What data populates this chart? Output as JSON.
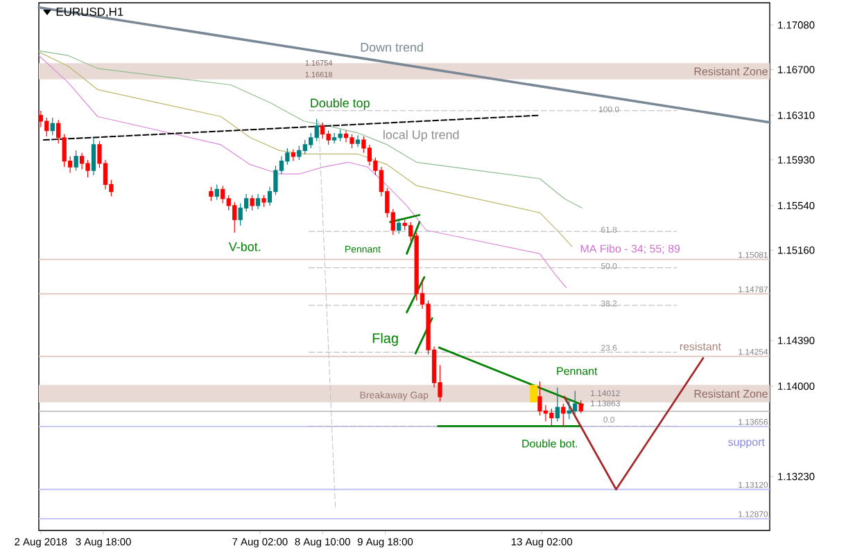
{
  "chart_data": {
    "type": "candlestick",
    "title": "EURUSD,H1",
    "x": [
      "2018-08-02T10:00",
      "2018-08-02T13:00",
      "2018-08-02T16:00",
      "2018-08-02T19:00",
      "2018-08-02T22:00",
      "2018-08-03T01:00",
      "2018-08-03T04:00",
      "2018-08-03T07:00",
      "2018-08-03T10:00",
      "2018-08-03T13:00",
      "2018-08-03T16:00",
      "2018-08-03T19:00",
      "2018-08-03T22:00",
      "2018-08-06T01:00",
      "2018-08-06T04:00",
      "2018-08-06T07:00",
      "2018-08-06T10:00",
      "2018-08-06T13:00",
      "2018-08-06T16:00",
      "2018-08-06T19:00",
      "2018-08-06T22:00",
      "2018-08-07T01:00",
      "2018-08-07T04:00",
      "2018-08-07T07:00",
      "2018-08-07T10:00",
      "2018-08-07T13:00",
      "2018-08-07T16:00",
      "2018-08-07T19:00",
      "2018-08-07T22:00",
      "2018-08-08T01:00",
      "2018-08-08T04:00",
      "2018-08-08T07:00",
      "2018-08-08T10:00",
      "2018-08-08T13:00",
      "2018-08-08T16:00",
      "2018-08-08T19:00",
      "2018-08-08T22:00",
      "2018-08-09T01:00",
      "2018-08-09T04:00",
      "2018-08-09T07:00",
      "2018-08-09T10:00",
      "2018-08-09T13:00",
      "2018-08-09T16:00",
      "2018-08-09T19:00",
      "2018-08-09T22:00",
      "2018-08-10T01:00",
      "2018-08-10T04:00",
      "2018-08-10T07:00",
      "2018-08-10T10:00",
      "2018-08-10T13:00",
      "2018-08-10T16:00",
      "2018-08-10T19:00",
      "2018-08-10T22:00",
      "2018-08-13T01:00",
      "2018-08-13T04:00",
      "2018-08-13T07:00",
      "2018-08-13T10:00",
      "2018-08-13T13:00",
      "2018-08-13T16:00",
      "2018-08-13T19:00",
      "2018-08-13T22:00"
    ],
    "ohlc": [
      [
        1.1631,
        1.1635,
        1.1621,
        1.1626
      ],
      [
        1.1626,
        1.1629,
        1.1613,
        1.1618
      ],
      [
        1.1618,
        1.1629,
        1.1614,
        1.1624
      ],
      [
        1.1624,
        1.1627,
        1.1607,
        1.1612
      ],
      [
        1.1612,
        1.1615,
        1.1587,
        1.1592
      ],
      [
        1.1592,
        1.1596,
        1.1582,
        1.1587
      ],
      [
        1.1587,
        1.1601,
        1.1584,
        1.1596
      ],
      [
        1.1596,
        1.1599,
        1.1585,
        1.159
      ],
      [
        1.159,
        1.1593,
        1.1578,
        1.1584
      ],
      [
        1.1584,
        1.1612,
        1.158,
        1.1606
      ],
      [
        1.1606,
        1.1609,
        1.1586,
        1.159
      ],
      [
        1.159,
        1.1593,
        1.1568,
        1.1572
      ],
      [
        1.1572,
        1.1576,
        1.1562,
        1.1566
      ],
      [
        1.1566,
        1.157,
        1.1558,
        1.1562
      ],
      [
        1.1562,
        1.1572,
        1.1559,
        1.1568
      ],
      [
        1.1568,
        1.1571,
        1.1556,
        1.156
      ],
      [
        1.156,
        1.1563,
        1.155,
        1.1554
      ],
      [
        1.1554,
        1.1557,
        1.1531,
        1.1542
      ],
      [
        1.1542,
        1.1556,
        1.1537,
        1.1552
      ],
      [
        1.1552,
        1.1564,
        1.1549,
        1.156
      ],
      [
        1.156,
        1.1563,
        1.155,
        1.1554
      ],
      [
        1.1554,
        1.1564,
        1.1551,
        1.156
      ],
      [
        1.156,
        1.1563,
        1.1553,
        1.1557
      ],
      [
        1.1557,
        1.157,
        1.1554,
        1.1566
      ],
      [
        1.1566,
        1.1588,
        1.1563,
        1.1584
      ],
      [
        1.1584,
        1.1596,
        1.1581,
        1.1592
      ],
      [
        1.1592,
        1.1603,
        1.1589,
        1.1599
      ],
      [
        1.1599,
        1.1602,
        1.1592,
        1.1596
      ],
      [
        1.1596,
        1.1605,
        1.1593,
        1.1601
      ],
      [
        1.1601,
        1.161,
        1.1598,
        1.1606
      ],
      [
        1.1606,
        1.1616,
        1.1603,
        1.1612
      ],
      [
        1.1612,
        1.1628,
        1.1609,
        1.1622
      ],
      [
        1.1622,
        1.1625,
        1.1611,
        1.1615
      ],
      [
        1.1615,
        1.1618,
        1.1606,
        1.161
      ],
      [
        1.161,
        1.1616,
        1.1607,
        1.1612
      ],
      [
        1.1612,
        1.1619,
        1.1609,
        1.1615
      ],
      [
        1.1615,
        1.1618,
        1.1608,
        1.1612
      ],
      [
        1.1612,
        1.1615,
        1.1603,
        1.1607
      ],
      [
        1.1607,
        1.1614,
        1.1604,
        1.161
      ],
      [
        1.161,
        1.1613,
        1.1599,
        1.1603
      ],
      [
        1.1603,
        1.1606,
        1.1588,
        1.1592
      ],
      [
        1.1592,
        1.1595,
        1.158,
        1.1584
      ],
      [
        1.1584,
        1.1587,
        1.1562,
        1.1566
      ],
      [
        1.1566,
        1.1569,
        1.1544,
        1.1548
      ],
      [
        1.1548,
        1.1551,
        1.1529,
        1.1533
      ],
      [
        1.1533,
        1.1543,
        1.153,
        1.1539
      ],
      [
        1.1539,
        1.1542,
        1.1533,
        1.1537
      ],
      [
        1.1537,
        1.154,
        1.1524,
        1.1528
      ],
      [
        1.1528,
        1.1531,
        1.1473,
        1.1479
      ],
      [
        1.1479,
        1.1491,
        1.1466,
        1.147
      ],
      [
        1.147,
        1.1473,
        1.1427,
        1.1431
      ],
      [
        1.1431,
        1.1434,
        1.1399,
        1.1403
      ],
      [
        1.1403,
        1.1418,
        1.1387,
        1.1391
      ],
      [
        1.1391,
        1.1404,
        1.1375,
        1.1379
      ],
      [
        1.1379,
        1.1384,
        1.137,
        1.1377
      ],
      [
        1.1377,
        1.1381,
        1.1366,
        1.1373
      ],
      [
        1.1373,
        1.1399,
        1.137,
        1.1382
      ],
      [
        1.1382,
        1.1385,
        1.1366,
        1.1377
      ],
      [
        1.1377,
        1.1389,
        1.1372,
        1.1379
      ],
      [
        1.1379,
        1.1396,
        1.1376,
        1.1385
      ],
      [
        1.1385,
        1.1388,
        1.1377,
        1.1379
      ]
    ],
    "colors": [
      "#ff0000",
      "#ff0000",
      "#008080",
      "#ff0000",
      "#ff0000",
      "#ff0000",
      "#008080",
      "#ff0000",
      "#ff0000",
      "#008080",
      "#ff0000",
      "#ff0000",
      "#ff0000",
      "#ff0000",
      "#008080",
      "#ff0000",
      "#ff0000",
      "#ff0000",
      "#008080",
      "#008080",
      "#ff0000",
      "#008080",
      "#ff0000",
      "#008080",
      "#008080",
      "#008080",
      "#008080",
      "#ff0000",
      "#008080",
      "#008080",
      "#008080",
      "#008080",
      "#ff0000",
      "#ff0000",
      "#008080",
      "#008080",
      "#ff0000",
      "#ff0000",
      "#008080",
      "#ff0000",
      "#ff0000",
      "#ff0000",
      "#ff0000",
      "#ff0000",
      "#ff0000",
      "#008080",
      "#ff0000",
      "#ff0000",
      "#ff0000",
      "#ff0000",
      "#ff0000",
      "#ff0000",
      "#ff0000",
      "#ff0000",
      "#ff0000",
      "#ff0000",
      "#008080",
      "#ff0000",
      "#008080",
      "#008080",
      "#ff0000"
    ],
    "series": [
      {
        "type": "line",
        "color": "#7a8794",
        "x": [
          "2018-08-02T09:00",
          "2018-08-17T22:30"
        ],
        "values": [
          1.1723,
          1.1625
        ]
      },
      {
        "type": "line",
        "color": "#8fbc8f",
        "x": [
          "2018-08-02T09:00",
          "2018-08-03T00:00",
          "2018-08-03T15:00",
          "2018-08-06T11:00",
          "2018-08-07T07:00",
          "2018-08-08T00:30",
          "2018-08-08T13:00",
          "2018-08-09T04:00",
          "2018-08-09T19:00",
          "2018-08-10T10:00",
          "2018-08-13T01:00",
          "2018-08-13T13:30",
          "2018-08-13T22:30"
        ],
        "values": [
          1.1686,
          1.1682,
          1.1671,
          1.1657,
          1.1642,
          1.1626,
          1.1622,
          1.1616,
          1.1606,
          1.1591,
          1.1577,
          1.156,
          1.1552
        ]
      },
      {
        "type": "line",
        "color": "#bdb76b",
        "x": [
          "2018-08-02T09:00",
          "2018-08-03T00:00",
          "2018-08-03T15:00",
          "2018-08-06T06:00",
          "2018-08-06T21:00",
          "2018-08-07T12:00",
          "2018-08-08T00:30",
          "2018-08-08T13:00",
          "2018-08-09T04:00",
          "2018-08-09T19:00",
          "2018-08-10T10:00",
          "2018-08-13T01:00",
          "2018-08-13T11:00",
          "2018-08-13T17:30"
        ],
        "values": [
          1.1685,
          1.1673,
          1.1653,
          1.163,
          1.1612,
          1.1601,
          1.1598,
          1.1598,
          1.1598,
          1.1589,
          1.1571,
          1.1548,
          1.1531,
          1.1519
        ]
      },
      {
        "type": "line",
        "color": "#dd88dd",
        "x": [
          "2018-08-02T09:00",
          "2018-08-03T00:00",
          "2018-08-03T15:00",
          "2018-08-06T06:00",
          "2018-08-06T21:00",
          "2018-08-07T12:00",
          "2018-08-07T22:00",
          "2018-08-08T10:30",
          "2018-08-08T23:00",
          "2018-08-09T09:00",
          "2018-08-09T19:00",
          "2018-08-10T05:00",
          "2018-08-10T15:00",
          "2018-08-13T01:00",
          "2018-08-13T08:30",
          "2018-08-13T14:30"
        ],
        "values": [
          1.1682,
          1.1659,
          1.163,
          1.1606,
          1.1589,
          1.1581,
          1.1581,
          1.1587,
          1.1591,
          1.1587,
          1.1571,
          1.1554,
          1.1533,
          1.1513,
          1.1496,
          1.1484
        ]
      },
      {
        "type": "line",
        "color": "#000000",
        "line_style": "dashed",
        "x": [
          "2018-08-02T11:30",
          "2018-08-13T01:00"
        ],
        "values": [
          1.161,
          1.1631
        ]
      },
      {
        "type": "line",
        "color": "#c0c0c0",
        "line_style": "dashed",
        "x": [
          "2018-08-08T08:00",
          "2018-08-08T16:30"
        ],
        "values": [
          1.1626,
          1.1297
        ]
      },
      {
        "type": "line",
        "color": "#b4b4b4",
        "line_style": "dashed",
        "x": [
          "2018-08-08T03:00",
          "2018-08-15T23:00"
        ],
        "values": [
          1.1635,
          1.1635
        ]
      },
      {
        "type": "line",
        "color": "#b4b4b4",
        "line_style": "dashed",
        "x": [
          "2018-08-08T03:00",
          "2018-08-15T23:00"
        ],
        "values": [
          1.1532,
          1.1532
        ]
      },
      {
        "type": "line",
        "color": "#b4b4b4",
        "line_style": "dashed",
        "x": [
          "2018-08-08T03:00",
          "2018-08-15T23:00"
        ],
        "values": [
          1.1501,
          1.1501
        ]
      },
      {
        "type": "line",
        "color": "#b4b4b4",
        "line_style": "dashed",
        "x": [
          "2018-08-08T03:00",
          "2018-08-15T23:00"
        ],
        "values": [
          1.1469,
          1.1469
        ]
      },
      {
        "type": "line",
        "color": "#b4b4b4",
        "line_style": "dashed",
        "x": [
          "2018-08-08T03:00",
          "2018-08-15T23:00"
        ],
        "values": [
          1.1429,
          1.1429
        ]
      },
      {
        "type": "line",
        "color": "#b4b4b4",
        "line_style": "dashed",
        "x": [
          "2018-08-08T03:00",
          "2018-08-15T23:00"
        ],
        "values": [
          1.1366,
          1.1366
        ]
      },
      {
        "type": "line",
        "color": "#008000",
        "x": [
          "2018-08-09T20:30",
          "2018-08-10T11:30"
        ],
        "values": [
          1.154,
          1.1546
        ]
      },
      {
        "type": "line",
        "color": "#008000",
        "x": [
          "2018-08-10T05:00",
          "2018-08-10T11:30"
        ],
        "values": [
          1.1513,
          1.154
        ]
      },
      {
        "type": "line",
        "color": "#008000",
        "x": [
          "2018-08-10T05:00",
          "2018-08-10T14:00"
        ],
        "values": [
          1.1463,
          1.1493
        ]
      },
      {
        "type": "line",
        "color": "#008000",
        "x": [
          "2018-08-10T09:30",
          "2018-08-10T18:00"
        ],
        "values": [
          1.1428,
          1.1458
        ]
      },
      {
        "type": "line",
        "color": "#008000",
        "x": [
          "2018-08-10T21:30",
          "2018-08-13T23:00"
        ],
        "values": [
          1.1433,
          1.1384
        ]
      },
      {
        "type": "line",
        "color": "#008000",
        "x": [
          "2018-08-10T21:00",
          "2018-08-13T22:00"
        ],
        "values": [
          1.1366,
          1.1366
        ]
      },
      {
        "type": "line",
        "color": "#a52a2a",
        "x": [
          "2018-08-13T13:30",
          "2018-08-14T16:00",
          "2018-08-16T12:30"
        ],
        "values": [
          1.1391,
          1.1312,
          1.1424
        ]
      }
    ],
    "xlim": [
      "2018-08-02T09:00",
      "2018-08-17T22:30"
    ],
    "xticks": [
      {
        "value": "2018-08-02T10:00",
        "label": "2 Aug 2018"
      },
      {
        "value": "2018-08-03T18:00",
        "label": "3 Aug 18:00"
      },
      {
        "value": "2018-08-07T02:00",
        "label": "7 Aug 02:00"
      },
      {
        "value": "2018-08-08T10:00",
        "label": "8 Aug 10:00"
      },
      {
        "value": "2018-08-09T18:00",
        "label": "9 Aug 18:00"
      },
      {
        "value": "2018-08-13T02:00",
        "label": "13 Aug 02:00"
      }
    ],
    "ylim": [
      1.1277,
      1.1727
    ],
    "yticks": [
      {
        "value": 1.1708,
        "label": "1.17080"
      },
      {
        "value": 1.167,
        "label": "1.16700"
      },
      {
        "value": 1.1631,
        "label": "1.16310"
      },
      {
        "value": 1.1593,
        "label": "1.15930"
      },
      {
        "value": 1.1554,
        "label": "1.15540"
      },
      {
        "value": 1.1516,
        "label": "1.15160"
      },
      {
        "value": 1.1439,
        "label": "1.14390"
      },
      {
        "value": 1.14,
        "label": "1.14000"
      },
      {
        "value": 1.1323,
        "label": "1.13230"
      }
    ],
    "bands": [
      {
        "axis": "y",
        "from": 1.16618,
        "to": 1.16754,
        "label": "Resistant Zone",
        "color": "#e8d9d5"
      },
      {
        "axis": "y",
        "from": 1.13863,
        "to": 1.14012,
        "label": "Resistant Zone",
        "color": "#e8d9d5"
      }
    ],
    "ref_lines": [
      {
        "axis": "y",
        "value": 1.15081,
        "label": "1.15081",
        "color": "#dcc3be"
      },
      {
        "axis": "y",
        "value": 1.14787,
        "label": "1.14787",
        "color": "#dcc3be"
      },
      {
        "axis": "y",
        "value": 1.14254,
        "label": "1.14254",
        "color": "#dcc3be"
      },
      {
        "axis": "y",
        "value": 1.13787,
        "color": "#c0c0c0"
      },
      {
        "axis": "y",
        "value": 1.13656,
        "label": "1.13656",
        "color": "#c0c0f8"
      },
      {
        "axis": "y",
        "value": 1.1312,
        "label": "1.13120",
        "color": "#c0c0f8"
      },
      {
        "axis": "y",
        "value": 1.1287,
        "label": "1.12870",
        "color": "#c0c0f8"
      }
    ],
    "annotations": [
      "Down trend",
      "Double top",
      "local Up trend",
      "V-bot.",
      "Pennant",
      "MA Fibo - 34; 55; 89",
      "Flag",
      "Breakaway Gap",
      "Pennant",
      "Double bot.",
      "resistant",
      "support",
      "100.0",
      "61.8",
      "50.0",
      "38.2",
      "23.6",
      "0.0",
      "1.16754",
      "1.16618",
      "1.14012",
      "1.13863"
    ]
  }
}
